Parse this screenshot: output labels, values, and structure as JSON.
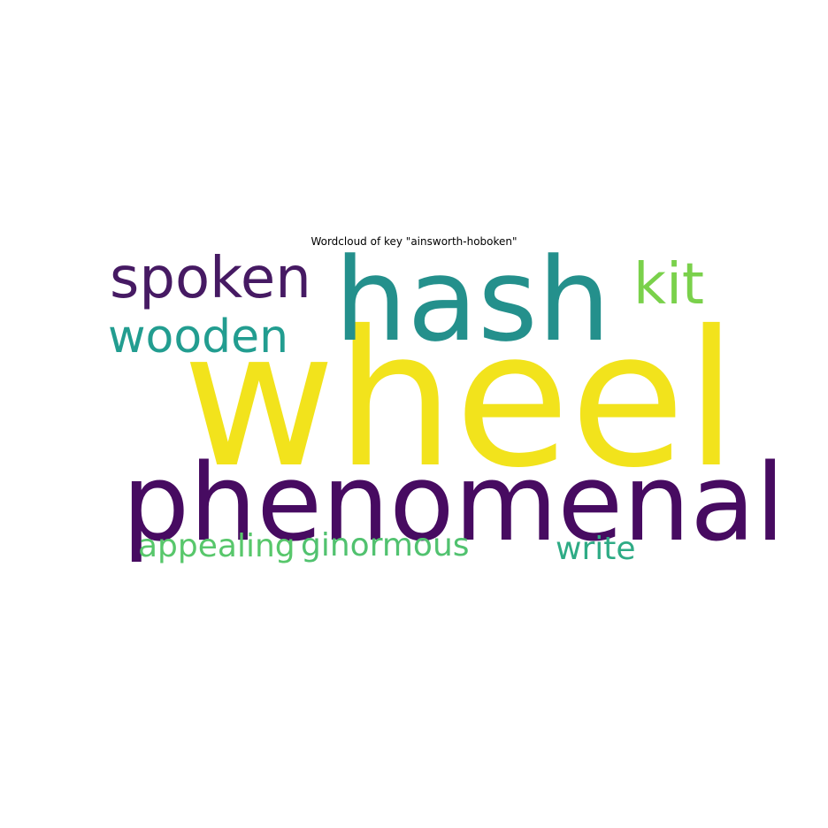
{
  "title": "Wordcloud of key \"ainsworth-hoboken\"",
  "words": [
    {
      "id": "wheel",
      "text": "wheel",
      "color": "#f2e31c"
    },
    {
      "id": "phenomenal",
      "text": "phenomenal",
      "color": "#470b61"
    },
    {
      "id": "hash",
      "text": "hash",
      "color": "#24908c"
    },
    {
      "id": "spoken",
      "text": "spoken",
      "color": "#461a63"
    },
    {
      "id": "kit",
      "text": "kit",
      "color": "#7ad14b"
    },
    {
      "id": "wooden",
      "text": "wooden",
      "color": "#229d90"
    },
    {
      "id": "appealing",
      "text": "appealing",
      "color": "#58c76b"
    },
    {
      "id": "ginormous",
      "text": "ginormous",
      "color": "#51c26f"
    },
    {
      "id": "write",
      "text": "write",
      "color": "#2eab85"
    }
  ]
}
